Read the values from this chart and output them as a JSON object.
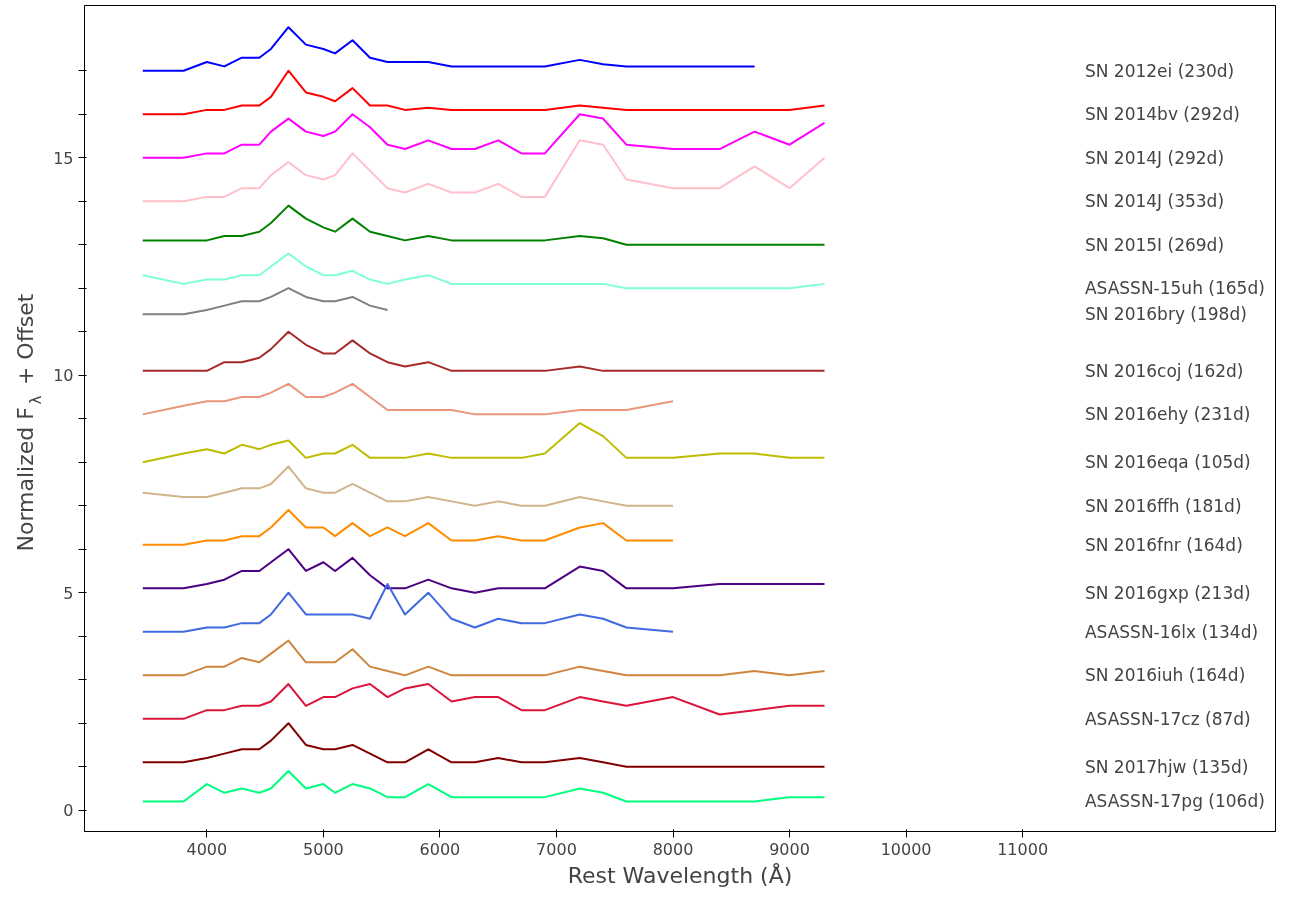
{
  "chart_data": {
    "type": "line",
    "xlabel": "Rest Wavelength (Å)",
    "ylabel": "Normalized F$_{λ}$ + Offset",
    "xlim": [
      2950,
      13170
    ],
    "ylim": [
      -0.49,
      18.5
    ],
    "xticks": [
      4000,
      5000,
      6000,
      7000,
      8000,
      9000,
      10000,
      11000
    ],
    "yticks": [
      0,
      {
        "value": 1,
        "label": null
      },
      {
        "value": 2,
        "label": null
      },
      {
        "value": 3,
        "label": null
      },
      {
        "value": 4,
        "label": null
      },
      5,
      {
        "value": 6,
        "label": null
      },
      {
        "value": 7,
        "label": null
      },
      {
        "value": 8,
        "label": null
      },
      {
        "value": 9,
        "label": null
      },
      10,
      {
        "value": 11,
        "label": null
      },
      {
        "value": 12,
        "label": null
      },
      {
        "value": 13,
        "label": null
      },
      {
        "value": 14,
        "label": null
      },
      15,
      {
        "value": 16,
        "label": null
      },
      {
        "value": 17,
        "label": null
      }
    ],
    "grid": false,
    "marker": "none",
    "line_style": "solid",
    "x": [
      3450,
      3800,
      4000,
      4150,
      4300,
      4450,
      4550,
      4700,
      4850,
      5000,
      5100,
      5250,
      5400,
      5550,
      5700,
      5900,
      6100,
      6300,
      6500,
      6700,
      6900,
      7200,
      7400,
      7600,
      8000,
      8400,
      8700,
      9000,
      9300
    ],
    "series": [
      {
        "name": "SN 2012ei (230d)",
        "color": "#0000ff",
        "values": [
          17.0,
          17.0,
          17.2,
          17.1,
          17.3,
          17.3,
          17.5,
          18.0,
          17.6,
          17.5,
          17.4,
          17.7,
          17.3,
          17.2,
          17.2,
          17.2,
          17.1,
          17.1,
          17.1,
          17.1,
          17.1,
          17.25,
          17.15,
          17.1,
          17.1,
          17.1,
          17.1,
          null,
          null
        ]
      },
      {
        "name": "SN 2014bv (292d)",
        "color": "#ff0000",
        "values": [
          16.0,
          16.0,
          16.1,
          16.1,
          16.2,
          16.2,
          16.4,
          17.0,
          16.5,
          16.4,
          16.3,
          16.6,
          16.2,
          16.2,
          16.1,
          16.15,
          16.1,
          16.1,
          16.1,
          16.1,
          16.1,
          16.2,
          16.15,
          16.1,
          16.1,
          16.1,
          16.1,
          16.1,
          16.2
        ]
      },
      {
        "name": "SN 2014J (292d)",
        "color": "#ff00ff",
        "values": [
          15.0,
          15.0,
          15.1,
          15.1,
          15.3,
          15.3,
          15.6,
          15.9,
          15.6,
          15.5,
          15.6,
          16.0,
          15.7,
          15.3,
          15.2,
          15.4,
          15.2,
          15.2,
          15.4,
          15.1,
          15.1,
          16.0,
          15.9,
          15.3,
          15.2,
          15.2,
          15.6,
          15.3,
          15.8
        ]
      },
      {
        "name": "SN 2014J (353d)",
        "color": "#ffc0cb",
        "values": [
          14.0,
          14.0,
          14.1,
          14.1,
          14.3,
          14.3,
          14.6,
          14.9,
          14.6,
          14.5,
          14.6,
          15.1,
          14.7,
          14.3,
          14.2,
          14.4,
          14.2,
          14.2,
          14.4,
          14.1,
          14.1,
          15.4,
          15.3,
          14.5,
          14.3,
          14.3,
          14.8,
          14.3,
          15.0
        ]
      },
      {
        "name": "SN 2015I (269d)",
        "color": "#008000",
        "values": [
          13.1,
          13.1,
          13.1,
          13.2,
          13.2,
          13.3,
          13.5,
          13.9,
          13.6,
          13.4,
          13.3,
          13.6,
          13.3,
          13.2,
          13.1,
          13.2,
          13.1,
          13.1,
          13.1,
          13.1,
          13.1,
          13.2,
          13.15,
          13.0,
          13.0,
          13.0,
          13.0,
          13.0,
          13.0
        ]
      },
      {
        "name": "ASASSN-15uh (165d)",
        "color": "#7fffd4",
        "values": [
          12.3,
          12.1,
          12.2,
          12.2,
          12.3,
          12.3,
          12.5,
          12.8,
          12.5,
          12.3,
          12.3,
          12.4,
          12.2,
          12.1,
          12.2,
          12.3,
          12.1,
          12.1,
          12.1,
          12.1,
          12.1,
          12.1,
          12.1,
          12.0,
          12.0,
          12.0,
          12.0,
          12.0,
          12.1
        ]
      },
      {
        "name": "SN 2016bry (198d)",
        "color": "#808080",
        "values": [
          11.4,
          11.4,
          11.5,
          11.6,
          11.7,
          11.7,
          11.8,
          12.0,
          11.8,
          11.7,
          11.7,
          11.8,
          11.6,
          11.5,
          null,
          null,
          null,
          null,
          null,
          null,
          null,
          null,
          null,
          null,
          null,
          null,
          null,
          null,
          null
        ]
      },
      {
        "name": "SN 2016coj (162d)",
        "color": "#a52a2a",
        "values": [
          10.1,
          10.1,
          10.1,
          10.3,
          10.3,
          10.4,
          10.6,
          11.0,
          10.7,
          10.5,
          10.5,
          10.8,
          10.5,
          10.3,
          10.2,
          10.3,
          10.1,
          10.1,
          10.1,
          10.1,
          10.1,
          10.2,
          10.1,
          10.1,
          10.1,
          10.1,
          10.1,
          10.1,
          10.1
        ]
      },
      {
        "name": "SN 2016ehy (231d)",
        "color": "#e9967a",
        "values": [
          9.1,
          9.3,
          9.4,
          9.4,
          9.5,
          9.5,
          9.6,
          9.8,
          9.5,
          9.5,
          9.6,
          9.8,
          9.5,
          9.2,
          9.2,
          9.2,
          9.2,
          9.1,
          9.1,
          9.1,
          9.1,
          9.2,
          9.2,
          9.2,
          9.4,
          null,
          null,
          null,
          null
        ]
      },
      {
        "name": "SN 2016eqa (105d)",
        "color": "#bcbd00",
        "values": [
          8.0,
          8.2,
          8.3,
          8.2,
          8.4,
          8.3,
          8.4,
          8.5,
          8.1,
          8.2,
          8.2,
          8.4,
          8.1,
          8.1,
          8.1,
          8.2,
          8.1,
          8.1,
          8.1,
          8.1,
          8.2,
          8.9,
          8.6,
          8.1,
          8.1,
          8.2,
          8.2,
          8.1,
          8.1
        ]
      },
      {
        "name": "SN 2016ffh (181d)",
        "color": "#d2b48c",
        "values": [
          7.3,
          7.2,
          7.2,
          7.3,
          7.4,
          7.4,
          7.5,
          7.9,
          7.4,
          7.3,
          7.3,
          7.5,
          7.3,
          7.1,
          7.1,
          7.2,
          7.1,
          7.0,
          7.1,
          7.0,
          7.0,
          7.2,
          7.1,
          7.0,
          7.0,
          null,
          null,
          null,
          null
        ]
      },
      {
        "name": "SN 2016fnr (164d)",
        "color": "#ff8c00",
        "values": [
          6.1,
          6.1,
          6.2,
          6.2,
          6.3,
          6.3,
          6.5,
          6.9,
          6.5,
          6.5,
          6.3,
          6.6,
          6.3,
          6.5,
          6.3,
          6.6,
          6.2,
          6.2,
          6.3,
          6.2,
          6.2,
          6.5,
          6.6,
          6.2,
          6.2,
          null,
          null,
          null,
          null
        ]
      },
      {
        "name": "SN 2016gxp (213d)",
        "color": "#4b0082",
        "values": [
          5.1,
          5.1,
          5.2,
          5.3,
          5.5,
          5.5,
          5.7,
          6.0,
          5.5,
          5.7,
          5.5,
          5.8,
          5.4,
          5.1,
          5.1,
          5.3,
          5.1,
          5.0,
          5.1,
          5.1,
          5.1,
          5.6,
          5.5,
          5.1,
          5.1,
          5.2,
          5.2,
          5.2,
          5.2
        ]
      },
      {
        "name": "ASASSN-16lx (134d)",
        "color": "#4169e1",
        "values": [
          4.1,
          4.1,
          4.2,
          4.2,
          4.3,
          4.3,
          4.5,
          5.0,
          4.5,
          4.5,
          4.5,
          4.5,
          4.4,
          5.2,
          4.5,
          5.0,
          4.4,
          4.2,
          4.4,
          4.3,
          4.3,
          4.5,
          4.4,
          4.2,
          4.1,
          null,
          null,
          null,
          null
        ]
      },
      {
        "name": "SN 2016iuh (164d)",
        "color": "#cd853f",
        "values": [
          3.1,
          3.1,
          3.3,
          3.3,
          3.5,
          3.4,
          3.6,
          3.9,
          3.4,
          3.4,
          3.4,
          3.7,
          3.3,
          3.2,
          3.1,
          3.3,
          3.1,
          3.1,
          3.1,
          3.1,
          3.1,
          3.3,
          3.2,
          3.1,
          3.1,
          3.1,
          3.2,
          3.1,
          3.2
        ]
      },
      {
        "name": "ASASSN-17cz (87d)",
        "color": "#dc143c",
        "values": [
          2.1,
          2.1,
          2.3,
          2.3,
          2.4,
          2.4,
          2.5,
          2.9,
          2.4,
          2.6,
          2.6,
          2.8,
          2.9,
          2.6,
          2.8,
          2.9,
          2.5,
          2.6,
          2.6,
          2.3,
          2.3,
          2.6,
          2.5,
          2.4,
          2.6,
          2.2,
          2.3,
          2.4,
          2.4
        ]
      },
      {
        "name": "SN 2017hjw (135d)",
        "color": "#800000",
        "values": [
          1.1,
          1.1,
          1.2,
          1.3,
          1.4,
          1.4,
          1.6,
          2.0,
          1.5,
          1.4,
          1.4,
          1.5,
          1.3,
          1.1,
          1.1,
          1.4,
          1.1,
          1.1,
          1.2,
          1.1,
          1.1,
          1.2,
          1.1,
          1.0,
          1.0,
          1.0,
          1.0,
          1.0,
          1.0
        ]
      },
      {
        "name": "ASASSN-17pg (106d)",
        "color": "#00ff7f",
        "values": [
          0.2,
          0.2,
          0.6,
          0.4,
          0.5,
          0.4,
          0.5,
          0.9,
          0.5,
          0.6,
          0.4,
          0.6,
          0.5,
          0.3,
          0.3,
          0.6,
          0.3,
          0.3,
          0.3,
          0.3,
          0.3,
          0.5,
          0.4,
          0.2,
          0.2,
          0.2,
          0.2,
          0.3,
          0.3
        ]
      }
    ]
  }
}
